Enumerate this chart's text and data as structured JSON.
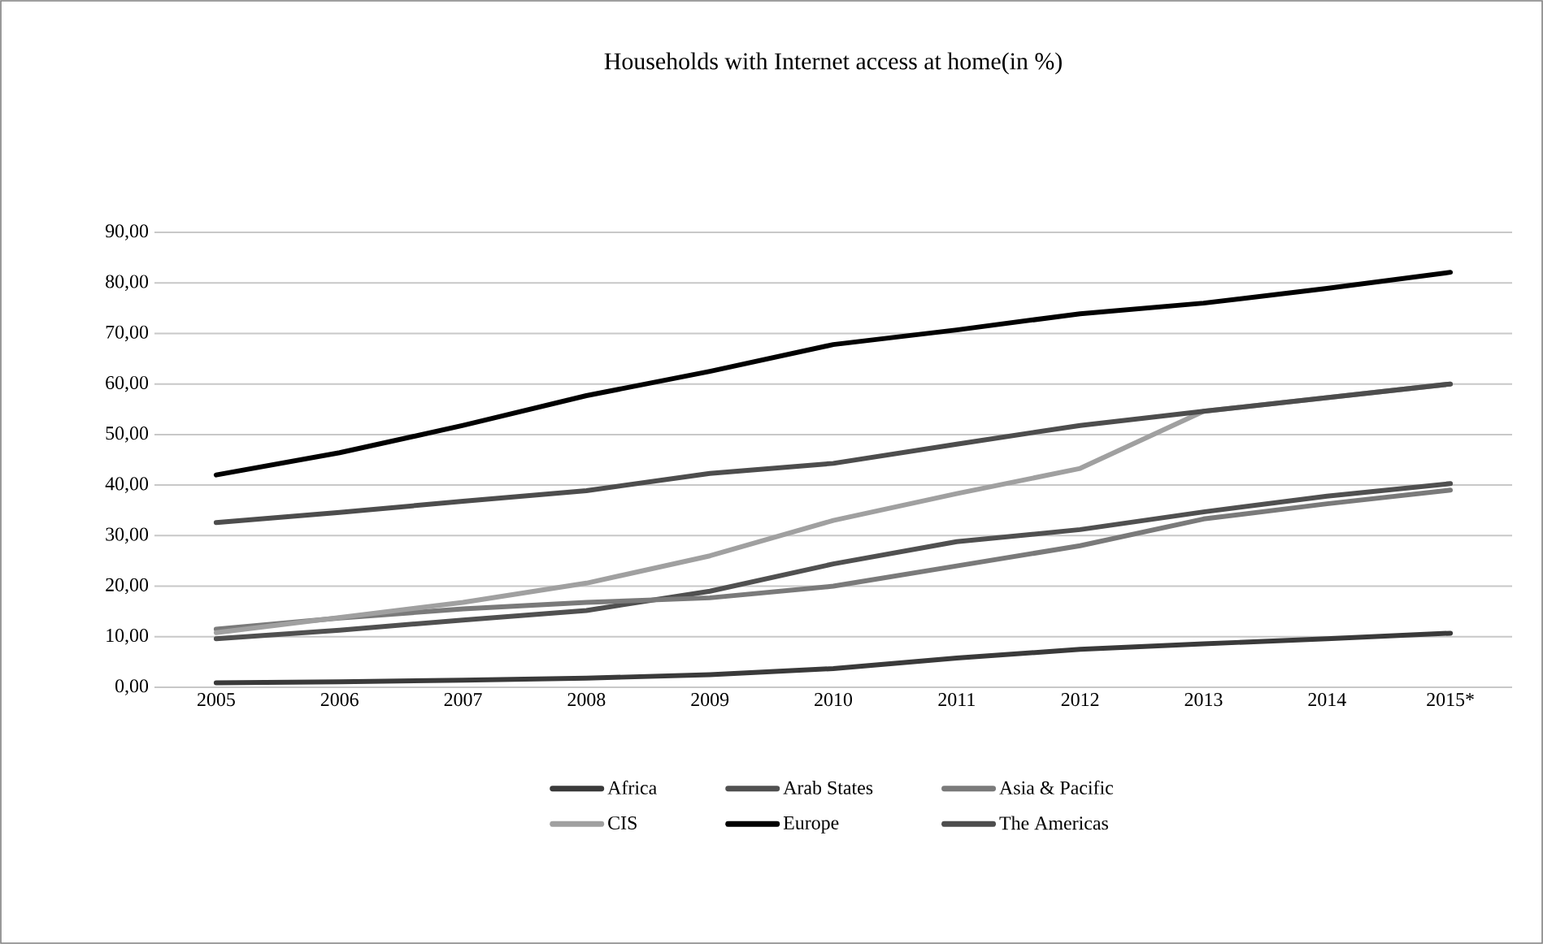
{
  "chart_data": {
    "type": "line",
    "title": "Households with Internet access at home(in %)",
    "categories": [
      "2005",
      "2006",
      "2007",
      "2008",
      "2009",
      "2010",
      "2011",
      "2012",
      "2013",
      "2014",
      "2015*"
    ],
    "series": [
      {
        "name": "Africa",
        "color": "#3a3a3a",
        "values": [
          0.9,
          1.1,
          1.4,
          1.8,
          2.5,
          3.7,
          5.8,
          7.5,
          8.6,
          9.6,
          10.7
        ]
      },
      {
        "name": "Arab States",
        "color": "#505050",
        "values": [
          9.6,
          11.3,
          13.3,
          15.2,
          19.0,
          24.4,
          28.8,
          31.2,
          34.7,
          37.8,
          40.3
        ]
      },
      {
        "name": "Asia & Pacific",
        "color": "#7a7a7a",
        "values": [
          11.5,
          13.7,
          15.5,
          16.8,
          17.7,
          20.0,
          24.0,
          28.0,
          33.3,
          36.3,
          39.0
        ]
      },
      {
        "name": "CIS",
        "color": "#a0a0a0",
        "values": [
          10.8,
          13.8,
          16.8,
          20.6,
          26.0,
          33.0,
          38.3,
          43.3,
          54.6,
          57.3,
          60.0
        ]
      },
      {
        "name": "Europe",
        "color": "#000000",
        "values": [
          42.0,
          46.4,
          51.8,
          57.7,
          62.5,
          67.8,
          70.7,
          73.9,
          76.0,
          78.9,
          82.1
        ]
      },
      {
        "name": "The Americas",
        "color": "#4d4d4d",
        "values": [
          32.6,
          34.6,
          36.8,
          38.9,
          42.3,
          44.3,
          48.1,
          51.8,
          54.6,
          57.3,
          60.0
        ]
      }
    ],
    "ylim": [
      0,
      90
    ],
    "yticks": [
      {
        "value": 0,
        "label": "0,00"
      },
      {
        "value": 10,
        "label": "10,00"
      },
      {
        "value": 20,
        "label": "20,00"
      },
      {
        "value": 30,
        "label": "30,00"
      },
      {
        "value": 40,
        "label": "40,00"
      },
      {
        "value": 50,
        "label": "50,00"
      },
      {
        "value": 60,
        "label": "60,00"
      },
      {
        "value": 70,
        "label": "70,00"
      },
      {
        "value": 80,
        "label": "80,00"
      },
      {
        "value": 90,
        "label": "90,00"
      }
    ],
    "grid": "y",
    "legend": "bottom",
    "marker": "none",
    "line_style": "solid"
  }
}
